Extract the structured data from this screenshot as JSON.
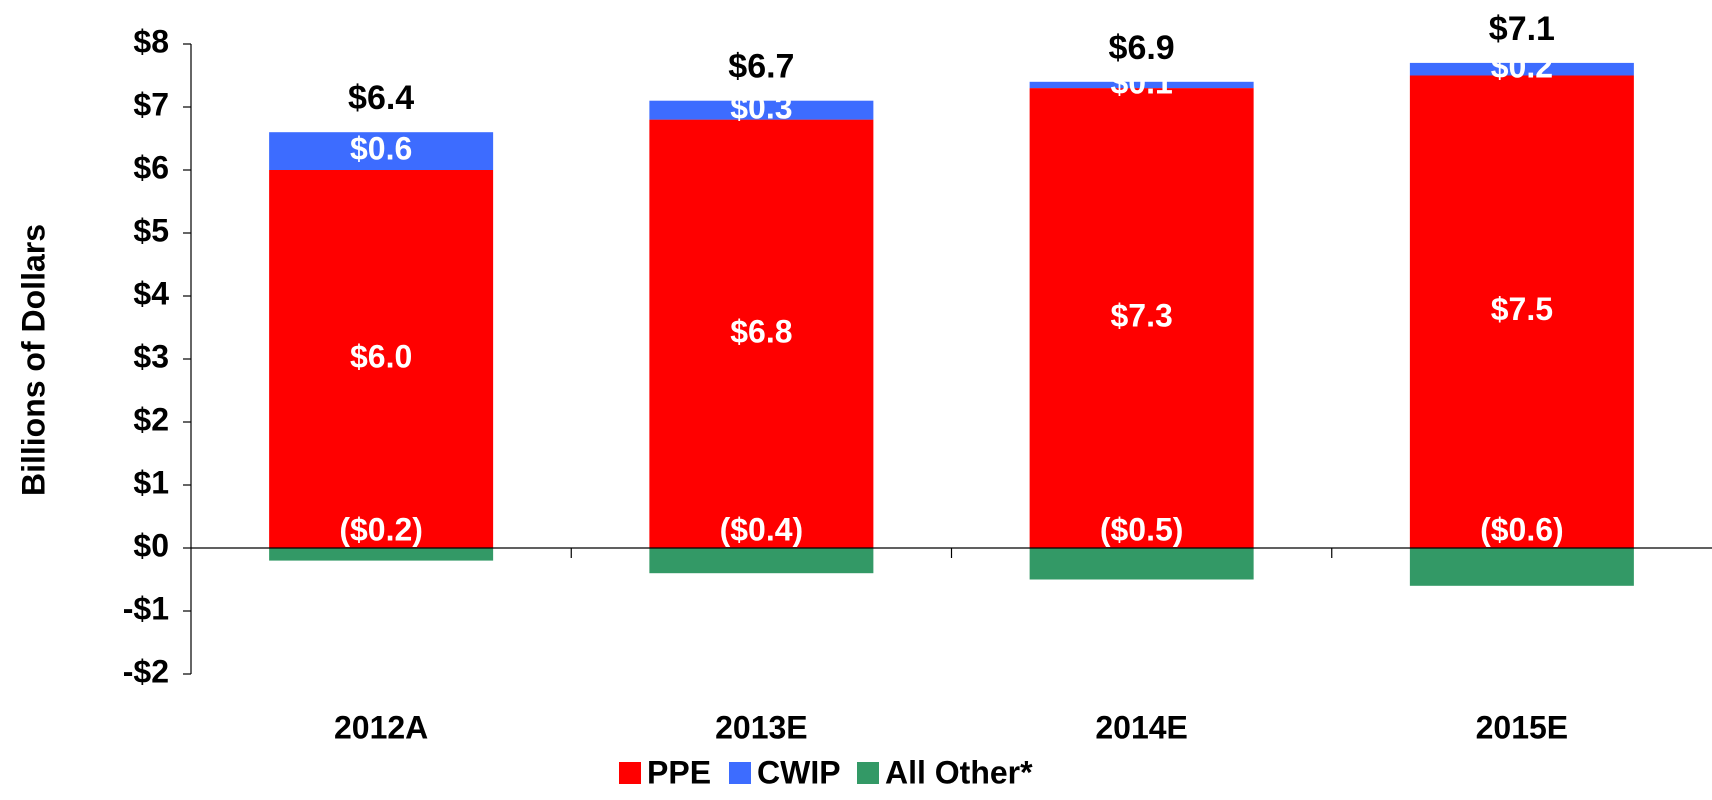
{
  "chart_data": {
    "type": "stacked_bar",
    "y_label": "Billions of Dollars",
    "categories": [
      "2012A",
      "2013E",
      "2014E",
      "2015E"
    ],
    "series": [
      {
        "name": "PPE",
        "color": "#ff0000",
        "values": [
          6.0,
          6.8,
          7.3,
          7.5
        ],
        "value_labels": [
          "$6.0",
          "$6.8",
          "$7.3",
          "$7.5"
        ]
      },
      {
        "name": "CWIP",
        "color": "#3d6cff",
        "values": [
          0.6,
          0.3,
          0.1,
          0.2
        ],
        "value_labels": [
          "$0.6",
          "$0.3",
          "$0.1",
          "$0.2"
        ]
      },
      {
        "name": "All Other*",
        "color": "#339966",
        "values": [
          -0.2,
          -0.4,
          -0.5,
          -0.6
        ],
        "value_labels": [
          "($0.2)",
          "($0.4)",
          "($0.5)",
          "($0.6)"
        ]
      }
    ],
    "totals": [
      6.4,
      6.7,
      6.9,
      7.1
    ],
    "total_labels": [
      "$6.4",
      "$6.7",
      "$6.9",
      "$7.1"
    ],
    "ylim": [
      -2,
      8
    ],
    "yticks": [
      {
        "value": -2,
        "label": "-$2"
      },
      {
        "value": -1,
        "label": "-$1"
      },
      {
        "value": 0,
        "label": "$0"
      },
      {
        "value": 1,
        "label": "$1"
      },
      {
        "value": 2,
        "label": "$2"
      },
      {
        "value": 3,
        "label": "$3"
      },
      {
        "value": 4,
        "label": "$4"
      },
      {
        "value": 5,
        "label": "$5"
      },
      {
        "value": 6,
        "label": "$6"
      },
      {
        "value": 7,
        "label": "$7"
      },
      {
        "value": 8,
        "label": "$8"
      }
    ],
    "legend": "bottom"
  }
}
